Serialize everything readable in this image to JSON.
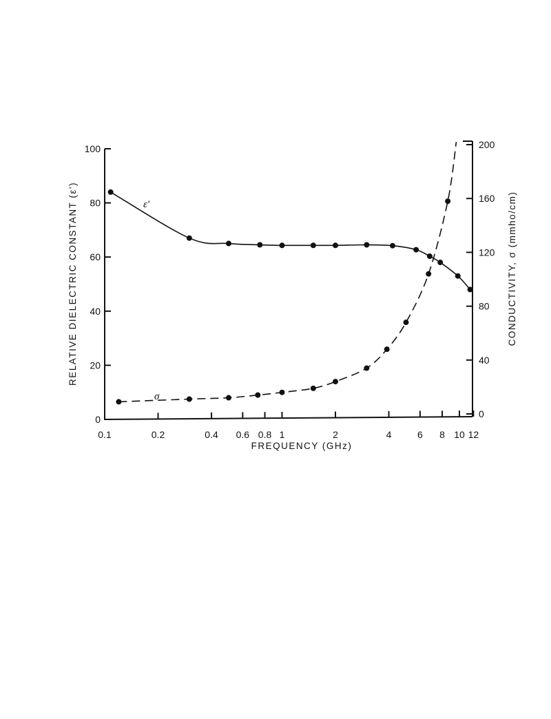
{
  "chart_data": {
    "type": "line",
    "title": "",
    "xlabel": "FREQUENCY (GHz)",
    "ylabel": "RELATIVE DIELECTRIC CONSTANT (ε')",
    "y2label": "CONDUCTIVITY, σ (mmho/cm)",
    "xscale": "log",
    "xlim": [
      0.1,
      12
    ],
    "ylim": [
      0,
      100
    ],
    "y2lim": [
      0,
      200
    ],
    "xticks": [
      "0.1",
      "0.2",
      "0.4",
      "0.6",
      "0.8",
      "1",
      "2",
      "4",
      "6",
      "8",
      "10",
      "12"
    ],
    "yticks": [
      "0",
      "20",
      "40",
      "60",
      "80",
      "100"
    ],
    "y2ticks": [
      "0",
      "40",
      "80",
      "120",
      "160",
      "200"
    ],
    "grid": false,
    "series": [
      {
        "name": "ε'",
        "axis": "left",
        "style": "solid",
        "x": [
          0.108,
          0.3,
          0.5,
          0.75,
          1.0,
          1.5,
          2.0,
          3.0,
          4.2,
          5.7,
          6.8,
          7.8,
          9.8,
          11.5
        ],
        "values": [
          84,
          67,
          65,
          64.5,
          64.3,
          64.3,
          64.3,
          64.5,
          64.2,
          62.7,
          60.3,
          58,
          53,
          48
        ]
      },
      {
        "name": "σ",
        "axis": "right",
        "style": "dashed",
        "x": [
          0.12,
          0.3,
          0.5,
          0.73,
          1.0,
          1.5,
          2.0,
          3.0,
          3.9,
          5.0,
          6.7,
          8.6
        ],
        "values": [
          9,
          11,
          12,
          14,
          16,
          19,
          24,
          34,
          48,
          68,
          104,
          158
        ],
        "curve_end": [
          9.6,
          202
        ]
      }
    ],
    "annotations": [
      "ε'",
      "σ"
    ]
  }
}
